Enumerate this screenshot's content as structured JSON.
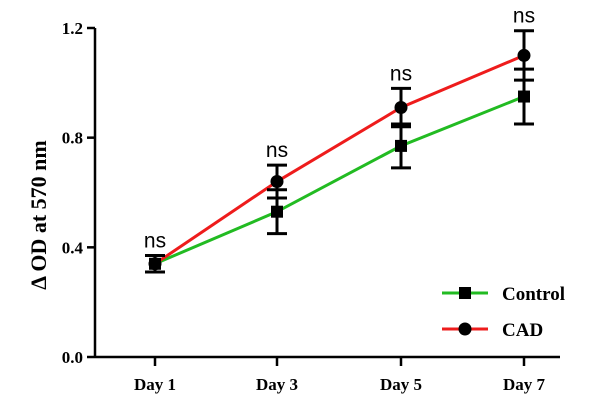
{
  "chart_data": {
    "type": "line",
    "title": "",
    "xlabel": "",
    "ylabel": "Δ OD at 570 nm",
    "categories": [
      "Day 1",
      "Day 3",
      "Day 5",
      "Day 7"
    ],
    "ylim": [
      0.0,
      1.2
    ],
    "yticks": [
      "0.0",
      "0.4",
      "0.8",
      "1.2"
    ],
    "grid": false,
    "legend_position": "bottom-right",
    "annotations": [
      "ns",
      "ns",
      "ns",
      "ns"
    ],
    "series": [
      {
        "name": "Control",
        "color": "#22bb22",
        "marker": "square",
        "values": [
          0.34,
          0.53,
          0.77,
          0.95
        ],
        "error": [
          0.03,
          0.08,
          0.08,
          0.1
        ]
      },
      {
        "name": "CAD",
        "color": "#ee1c1c",
        "marker": "circle",
        "values": [
          0.34,
          0.64,
          0.91,
          1.1
        ],
        "error": [
          0.03,
          0.06,
          0.07,
          0.09
        ]
      }
    ]
  }
}
